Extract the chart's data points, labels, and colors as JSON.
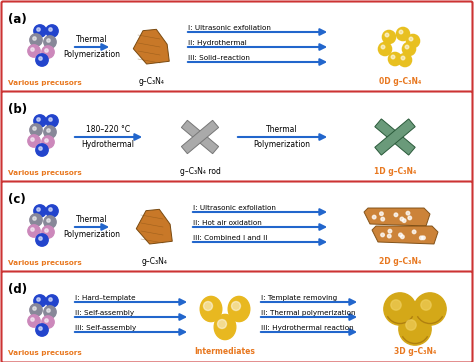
{
  "bg_color": "#ffffff",
  "border_color": "#cc3333",
  "orange_text": "#e87820",
  "arrow_color": "#2266cc",
  "panels": {
    "a": {
      "precursors_label": "Various precusors",
      "middle_label": "g–C₃N₄",
      "right_label": "0D g–C₃N₄",
      "arrow1_text": [
        "Thermal",
        "Polymerization"
      ],
      "right_items": [
        "I: Ultrasonic exfoliation",
        "II: Hydrothermal",
        "III: Solid–reaction"
      ]
    },
    "b": {
      "precursors_label": "Various precusors",
      "middle_label": "g–C₃N₄ rod",
      "right_label": "1D g–C₃N₄",
      "arrow1_text": [
        "180–220 °C",
        "Hydrothermal"
      ],
      "arrow2_text": [
        "Thermal",
        "Polymerization"
      ]
    },
    "c": {
      "precursors_label": "Various precusors",
      "middle_label": "g–C₃N₄",
      "right_label": "2D g–C₃N₄",
      "arrow1_text": [
        "Thermal",
        "Polymerization"
      ],
      "right_items": [
        "I: Ultrasonic exfoliation",
        "II: Hot air oxidation",
        "III: Combined I and II"
      ]
    },
    "d": {
      "precursors_label": "Various precusors",
      "middle_label": "Intermediates",
      "right_label": "3D g–C₃N₄",
      "left_items": [
        "I: Hard–template",
        "II: Self-assembly",
        "III: Self-assembly"
      ],
      "right_items": [
        "I: Template removing",
        "II: Thermal polymerization",
        "III: Hydrothermal reaction"
      ]
    }
  }
}
